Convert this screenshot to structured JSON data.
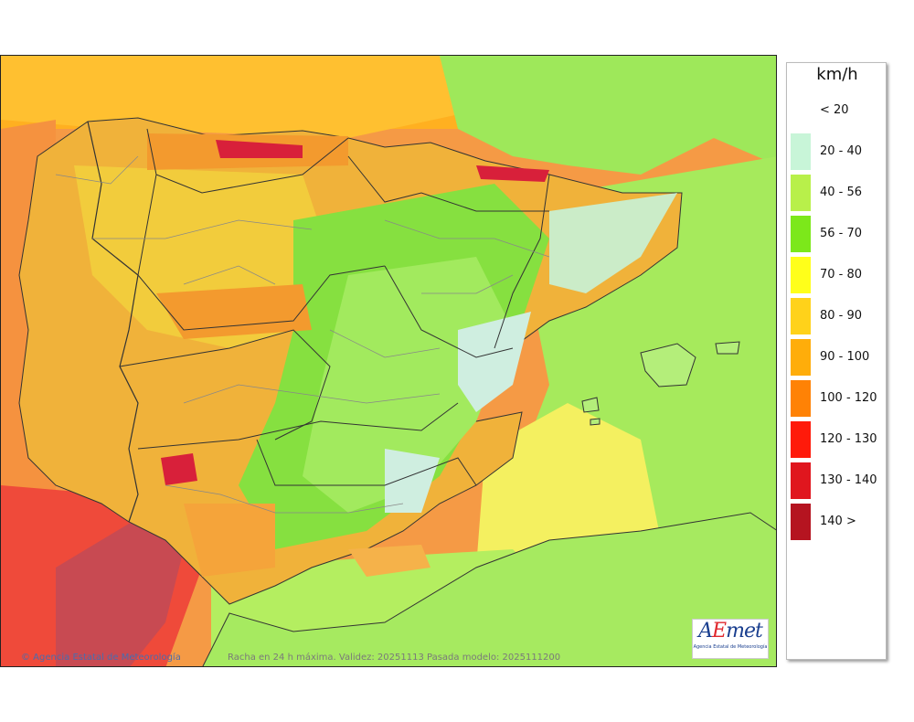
{
  "legend": {
    "unit": "km/h",
    "items": [
      {
        "label": "< 20",
        "color": "#ffffff"
      },
      {
        "label": "20 - 40",
        "color": "#c8f5d8"
      },
      {
        "label": "40 - 56",
        "color": "#b8f04a"
      },
      {
        "label": "56 - 70",
        "color": "#7ce81a"
      },
      {
        "label": "70 - 80",
        "color": "#ffff1a"
      },
      {
        "label": "80 - 90",
        "color": "#ffd21a"
      },
      {
        "label": "90 - 100",
        "color": "#ffad0a"
      },
      {
        "label": "100 - 120",
        "color": "#ff8205"
      },
      {
        "label": "120 - 130",
        "color": "#ff1a0a"
      },
      {
        "label": "130 - 140",
        "color": "#e0161e"
      },
      {
        "label": "140 >",
        "color": "#b51420"
      }
    ]
  },
  "footer": {
    "credit": "© Agencia Estatal de Meteorología",
    "validity": "Racha en 24 h máxima. Validez: 20251113 Pasada modelo: 2025111200"
  },
  "logo": {
    "name": "AEmet",
    "subtitle": "Agencia Estatal de Meteorología"
  }
}
